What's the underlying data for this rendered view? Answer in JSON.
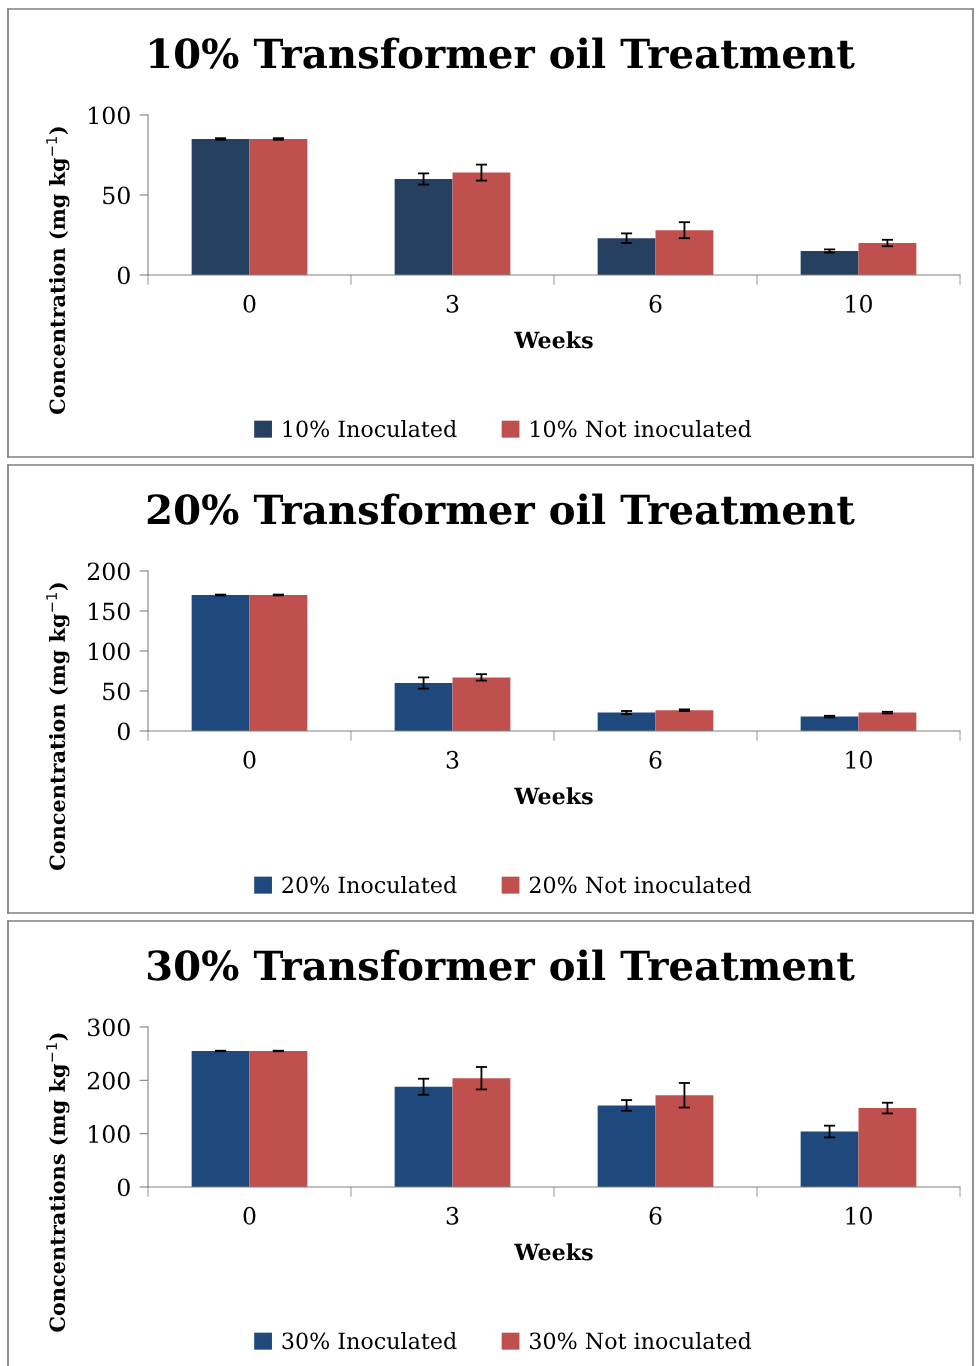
{
  "chart_data": [
    {
      "type": "bar",
      "title": "10% Transformer oil Treatment",
      "xlabel": "Weeks",
      "ylabel": "Concentration (mg kg$^{−1}$)",
      "categories": [
        "0",
        "3",
        "6",
        "10"
      ],
      "ylim": [
        0,
        100
      ],
      "yticks": [
        0,
        50,
        100
      ],
      "legend": "bottom",
      "grid": false,
      "series": [
        {
          "name": "10% Inoculated",
          "color": "#254061",
          "values": [
            85,
            60,
            23,
            15
          ],
          "errors": [
            0.5,
            3.5,
            3,
            1
          ]
        },
        {
          "name": "10% Not inoculated",
          "color": "#c0504d",
          "values": [
            85,
            64,
            28,
            20
          ],
          "errors": [
            0.5,
            5,
            5,
            2
          ]
        }
      ]
    },
    {
      "type": "bar",
      "title": "20% Transformer oil Treatment",
      "xlabel": "Weeks",
      "ylabel": "Concentration (mg kg$^{−1}$)",
      "categories": [
        "0",
        "3",
        "6",
        "10"
      ],
      "ylim": [
        0,
        200
      ],
      "yticks": [
        0,
        50,
        100,
        150,
        200
      ],
      "legend": "bottom",
      "grid": false,
      "series": [
        {
          "name": "20% Inoculated",
          "color": "#1f497d",
          "values": [
            170,
            60,
            23,
            18
          ],
          "errors": [
            0.5,
            7,
            2,
            1
          ]
        },
        {
          "name": "20% Not inoculated",
          "color": "#c0504d",
          "values": [
            170,
            67,
            26,
            23
          ],
          "errors": [
            0.5,
            4,
            1,
            1
          ]
        }
      ]
    },
    {
      "type": "bar",
      "title": "30% Transformer oil Treatment",
      "xlabel": "Weeks",
      "ylabel": "Concentrations (mg kg$^{−1}$)",
      "categories": [
        "0",
        "3",
        "6",
        "10"
      ],
      "ylim": [
        0,
        300
      ],
      "yticks": [
        0,
        100,
        200,
        300
      ],
      "legend": "bottom",
      "grid": false,
      "series": [
        {
          "name": "30% Inoculated",
          "color": "#1f497d",
          "values": [
            255,
            188,
            153,
            104
          ],
          "errors": [
            0.5,
            15,
            10,
            11
          ]
        },
        {
          "name": "30% Not inoculated",
          "color": "#c0504d",
          "values": [
            255,
            204,
            172,
            148
          ],
          "errors": [
            0.5,
            21,
            23,
            10
          ]
        }
      ]
    }
  ]
}
